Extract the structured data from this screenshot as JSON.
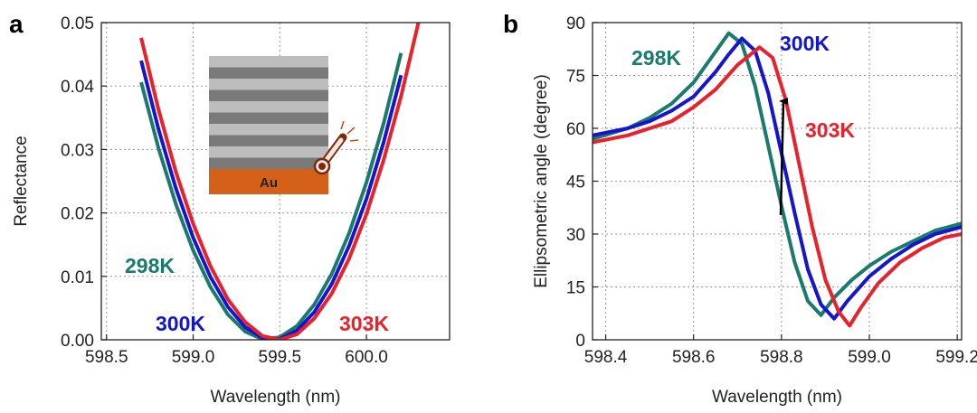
{
  "chart_data": [
    {
      "type": "line",
      "panel_label": "a",
      "x_label": "Wavelength (nm)",
      "y_label": "Reflectance",
      "inset_label": "Au",
      "xlim": [
        598.47,
        600.48
      ],
      "ylim": [
        0,
        0.05
      ],
      "xticks": [
        598.5,
        {
          "value": 599,
          "label": "599.0"
        },
        599.5,
        {
          "value": 600,
          "label": "600.0"
        }
      ],
      "yticks": [
        {
          "value": 0,
          "label": "0.00"
        },
        0.01,
        0.02,
        0.03,
        0.04,
        0.05
      ],
      "grid": true,
      "x": [
        598.6,
        598.7,
        598.8,
        598.9,
        599.0,
        599.1,
        599.2,
        599.3,
        599.4,
        599.5,
        599.6,
        599.7,
        599.8,
        599.9,
        600.0,
        600.1,
        600.2,
        600.3
      ],
      "series": [
        {
          "name": "298K",
          "color": "#1a7a6e",
          "values": [
            null,
            0.0406,
            0.0302,
            0.0214,
            0.0141,
            0.0083,
            0.004,
            0.0013,
            0.0001,
            0.0004,
            0.0022,
            0.0056,
            0.0104,
            0.0168,
            0.0248,
            0.0342,
            0.0452,
            null
          ]
        },
        {
          "name": "300K",
          "color": "#1515d0",
          "values": [
            null,
            0.044,
            0.0332,
            0.0239,
            0.0161,
            0.0099,
            0.0052,
            0.002,
            0.0003,
            0.0001,
            0.0015,
            0.0044,
            0.0088,
            0.0148,
            0.0222,
            0.0312,
            0.0417,
            null
          ]
        },
        {
          "name": "303K",
          "color": "#e8212b",
          "values": [
            null,
            0.0476,
            0.0363,
            0.0265,
            0.0183,
            0.0116,
            0.0064,
            0.0028,
            0.0006,
            0,
            0.0009,
            0.0034,
            0.0073,
            0.0128,
            0.0198,
            0.0284,
            0.0384,
            0.05
          ]
        }
      ]
    },
    {
      "type": "line",
      "panel_label": "b",
      "x_label": "Wavelength (nm)",
      "y_label": "Ellipsometric angle (degree)",
      "xlim": [
        598.37,
        599.21
      ],
      "ylim": [
        0,
        90
      ],
      "xticks": [
        598.4,
        598.6,
        598.8,
        {
          "value": 599,
          "label": "599.0"
        },
        599.2
      ],
      "yticks": [
        0,
        15,
        30,
        45,
        60,
        75,
        90
      ],
      "grid": true,
      "series": [
        {
          "name": "298K",
          "color": "#1a7a6e",
          "x": [
            598.37,
            598.45,
            598.5,
            598.55,
            598.6,
            598.64,
            598.68,
            598.71,
            598.74,
            598.77,
            598.8,
            598.83,
            598.86,
            598.89,
            598.92,
            598.96,
            599.0,
            599.05,
            599.1,
            599.15,
            599.21
          ],
          "values": [
            57,
            60,
            63,
            67,
            73,
            80,
            87,
            84,
            72,
            55,
            38,
            22,
            11,
            7,
            12,
            17,
            21,
            25,
            28,
            31,
            33
          ]
        },
        {
          "name": "300K",
          "color": "#1515d0",
          "x": [
            598.37,
            598.45,
            598.5,
            598.55,
            598.6,
            598.65,
            598.68,
            598.71,
            598.74,
            598.77,
            598.8,
            598.83,
            598.86,
            598.89,
            598.92,
            598.95,
            599.0,
            599.05,
            599.1,
            599.15,
            599.21
          ],
          "values": [
            58,
            60,
            62,
            65,
            69,
            76,
            81,
            85.5,
            82,
            70,
            53,
            36,
            20,
            10,
            6,
            11,
            18,
            23,
            27,
            30,
            32
          ]
        },
        {
          "name": "303K",
          "color": "#e8212b",
          "x": [
            598.37,
            598.45,
            598.5,
            598.55,
            598.6,
            598.65,
            598.7,
            598.75,
            598.78,
            598.81,
            598.84,
            598.87,
            598.9,
            598.93,
            598.955,
            598.98,
            599.02,
            599.07,
            599.12,
            599.17,
            599.21
          ],
          "values": [
            56,
            58,
            60,
            62,
            66,
            71,
            78,
            83,
            80,
            68,
            50,
            32,
            17,
            8,
            4,
            9,
            16,
            22,
            26,
            29,
            30
          ]
        }
      ]
    }
  ]
}
